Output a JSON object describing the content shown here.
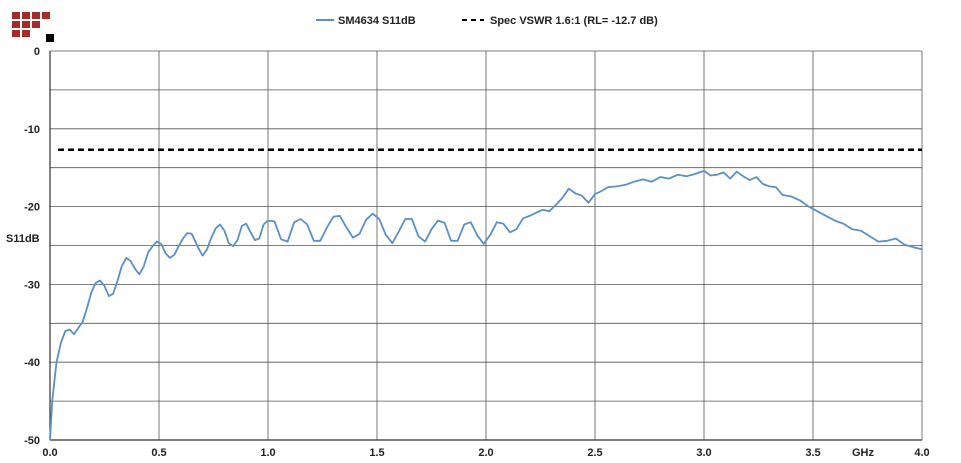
{
  "chart_data": {
    "type": "line",
    "xlabel": "GHz",
    "ylabel": "S11dB",
    "xlim": [
      0,
      4
    ],
    "ylim": [
      -50,
      0
    ],
    "x_ticks": [
      "0.0",
      "0.5",
      "1.0",
      "1.5",
      "2.0",
      "2.5",
      "3.0",
      "3.5",
      "4.0"
    ],
    "y_ticks": [
      "0",
      "-10",
      "-20",
      "-30",
      "-40",
      "-50"
    ],
    "grid": true,
    "legend_position": "top",
    "series": [
      {
        "name": "SM4634 S11dB",
        "color": "#5b8fc7",
        "style": "solid",
        "x": [
          0.0,
          0.01,
          0.03,
          0.05,
          0.07,
          0.09,
          0.11,
          0.13,
          0.15,
          0.17,
          0.19,
          0.21,
          0.23,
          0.25,
          0.27,
          0.29,
          0.31,
          0.33,
          0.35,
          0.37,
          0.39,
          0.41,
          0.43,
          0.45,
          0.47,
          0.49,
          0.51,
          0.53,
          0.55,
          0.57,
          0.59,
          0.61,
          0.63,
          0.65,
          0.68,
          0.7,
          0.72,
          0.74,
          0.76,
          0.78,
          0.8,
          0.82,
          0.84,
          0.86,
          0.88,
          0.9,
          0.92,
          0.94,
          0.96,
          0.98,
          1.0,
          1.03,
          1.06,
          1.09,
          1.12,
          1.15,
          1.18,
          1.21,
          1.24,
          1.27,
          1.3,
          1.33,
          1.36,
          1.39,
          1.42,
          1.45,
          1.48,
          1.51,
          1.54,
          1.57,
          1.6,
          1.63,
          1.66,
          1.69,
          1.72,
          1.75,
          1.78,
          1.81,
          1.84,
          1.87,
          1.9,
          1.93,
          1.96,
          1.99,
          2.02,
          2.05,
          2.08,
          2.11,
          2.14,
          2.17,
          2.2,
          2.23,
          2.26,
          2.29,
          2.32,
          2.35,
          2.38,
          2.41,
          2.44,
          2.47,
          2.5,
          2.53,
          2.56,
          2.6,
          2.64,
          2.68,
          2.72,
          2.76,
          2.8,
          2.84,
          2.88,
          2.92,
          2.96,
          3.0,
          3.03,
          3.06,
          3.09,
          3.12,
          3.15,
          3.18,
          3.21,
          3.24,
          3.27,
          3.3,
          3.33,
          3.36,
          3.4,
          3.44,
          3.48,
          3.52,
          3.56,
          3.6,
          3.64,
          3.68,
          3.72,
          3.76,
          3.8,
          3.84,
          3.88,
          3.92,
          3.96,
          4.0
        ],
        "y": [
          -50.0,
          -45.0,
          -40.0,
          -37.5,
          -36.0,
          -35.8,
          -36.4,
          -35.6,
          -34.8,
          -33.0,
          -31.0,
          -29.8,
          -29.5,
          -30.2,
          -31.5,
          -31.2,
          -29.5,
          -27.6,
          -26.6,
          -27.0,
          -28.0,
          -28.7,
          -27.7,
          -25.9,
          -25.1,
          -24.5,
          -24.8,
          -26.0,
          -26.6,
          -26.2,
          -25.1,
          -24.1,
          -23.4,
          -23.5,
          -25.3,
          -26.3,
          -25.5,
          -24.0,
          -22.8,
          -22.3,
          -23.1,
          -24.7,
          -25.1,
          -24.3,
          -22.5,
          -22.2,
          -23.3,
          -24.3,
          -24.1,
          -22.3,
          -21.8,
          -21.9,
          -24.2,
          -24.5,
          -22.0,
          -21.6,
          -22.3,
          -24.4,
          -24.4,
          -22.7,
          -21.3,
          -21.2,
          -22.7,
          -24.0,
          -23.5,
          -21.7,
          -20.9,
          -21.6,
          -23.6,
          -24.7,
          -23.2,
          -21.6,
          -21.6,
          -23.8,
          -24.5,
          -22.9,
          -21.8,
          -22.1,
          -24.4,
          -24.4,
          -22.3,
          -22.0,
          -23.7,
          -24.8,
          -23.6,
          -22.0,
          -22.2,
          -23.3,
          -22.9,
          -21.5,
          -21.2,
          -20.8,
          -20.4,
          -20.6,
          -19.8,
          -18.9,
          -17.7,
          -18.3,
          -18.6,
          -19.5,
          -18.4,
          -18.0,
          -17.5,
          -17.4,
          -17.2,
          -16.8,
          -16.5,
          -16.8,
          -16.2,
          -16.4,
          -15.9,
          -16.1,
          -15.8,
          -15.4,
          -16.0,
          -15.9,
          -15.6,
          -16.4,
          -15.5,
          -16.1,
          -16.6,
          -16.2,
          -17.1,
          -17.4,
          -17.5,
          -18.5,
          -18.7,
          -19.2,
          -20.0,
          -20.6,
          -21.2,
          -21.8,
          -22.2,
          -22.9,
          -23.1,
          -23.8,
          -24.5,
          -24.4,
          -24.1,
          -24.9,
          -25.2,
          -25.5
        ]
      },
      {
        "name": "Spec VSWR 1.6:1 (RL= -12.7 dB)",
        "color": "#000000",
        "style": "dashed",
        "x": [
          0.0,
          4.0
        ],
        "y": [
          -12.7,
          -12.7
        ]
      }
    ]
  }
}
